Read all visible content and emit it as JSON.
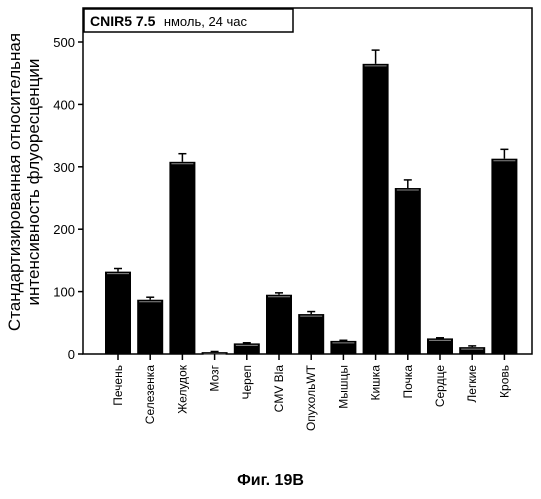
{
  "chart_data": {
    "type": "bar",
    "title": "",
    "legend_label_bold": "CNIR5 7.5",
    "legend_label": "нмоль, 24 час",
    "ylabel_line1": "Стандартизированная относительная",
    "ylabel_line2": "интенсивность флуоресценции",
    "xlabel": "",
    "ylim": [
      0,
      510
    ],
    "yticks": [
      0,
      100,
      200,
      300,
      400,
      500
    ],
    "categories": [
      "Печень",
      "Селезенка",
      "Желудок",
      "Мозг",
      "Череп",
      "CMV Bla",
      "ОпухольWT",
      "Мышцы",
      "Кишка",
      "Почка",
      "Сердце",
      "Легкие",
      "Кровь"
    ],
    "values": [
      132,
      87,
      308,
      3,
      17,
      95,
      64,
      21,
      465,
      266,
      25,
      11,
      313
    ],
    "errors": [
      5,
      4,
      13,
      1,
      1,
      3,
      4,
      1,
      22,
      13,
      1,
      2,
      15
    ],
    "bar_color": "#000000",
    "legend_position": "top-left"
  },
  "caption": "Фиг. 19B"
}
